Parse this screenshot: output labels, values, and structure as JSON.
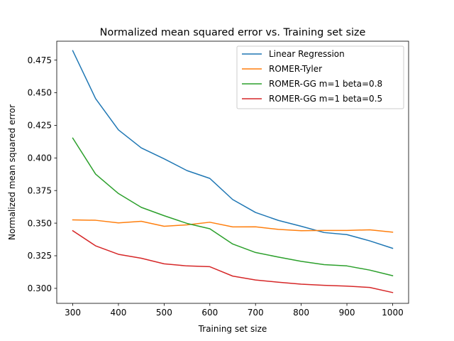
{
  "chart_data": {
    "type": "line",
    "title": "Normalized mean squared error vs. Training set size",
    "xlabel": "Training set size",
    "ylabel": "Normalized mean squared error",
    "xlim": [
      265,
      1035
    ],
    "ylim": [
      0.2885,
      0.4895
    ],
    "xticks": [
      300,
      400,
      500,
      600,
      700,
      800,
      900,
      1000
    ],
    "yticks": [
      0.3,
      0.325,
      0.35,
      0.375,
      0.4,
      0.425,
      0.45,
      0.475
    ],
    "ytick_labels": [
      "0.300",
      "0.325",
      "0.350",
      "0.375",
      "0.400",
      "0.425",
      "0.450",
      "0.475"
    ],
    "grid": false,
    "legend_position": "top-right",
    "x": [
      300,
      350,
      400,
      450,
      500,
      550,
      600,
      650,
      700,
      750,
      800,
      850,
      900,
      950,
      1000
    ],
    "series": [
      {
        "name": "Linear Regression",
        "color": "#1f77b4",
        "values": [
          0.4822,
          0.4455,
          0.4215,
          0.4077,
          0.3993,
          0.3903,
          0.3843,
          0.3681,
          0.3582,
          0.3521,
          0.3476,
          0.3428,
          0.3412,
          0.3364,
          0.3307
        ]
      },
      {
        "name": "ROMER-Tyler",
        "color": "#ff7f0e",
        "values": [
          0.3525,
          0.3522,
          0.3502,
          0.3514,
          0.3476,
          0.3487,
          0.3507,
          0.3471,
          0.3472,
          0.3452,
          0.3442,
          0.3444,
          0.3444,
          0.3449,
          0.3431
        ]
      },
      {
        "name": "ROMER-GG m=1 beta=0.8",
        "color": "#2ca02c",
        "values": [
          0.4152,
          0.3876,
          0.3727,
          0.3621,
          0.3557,
          0.3498,
          0.3457,
          0.334,
          0.3275,
          0.324,
          0.3207,
          0.3182,
          0.3172,
          0.314,
          0.3097
        ]
      },
      {
        "name": "ROMER-GG m=1 beta=0.5",
        "color": "#d62728",
        "values": [
          0.3442,
          0.3326,
          0.3261,
          0.3231,
          0.3188,
          0.3172,
          0.3166,
          0.3094,
          0.3064,
          0.3047,
          0.3032,
          0.3023,
          0.3017,
          0.3007,
          0.2968
        ]
      }
    ]
  }
}
